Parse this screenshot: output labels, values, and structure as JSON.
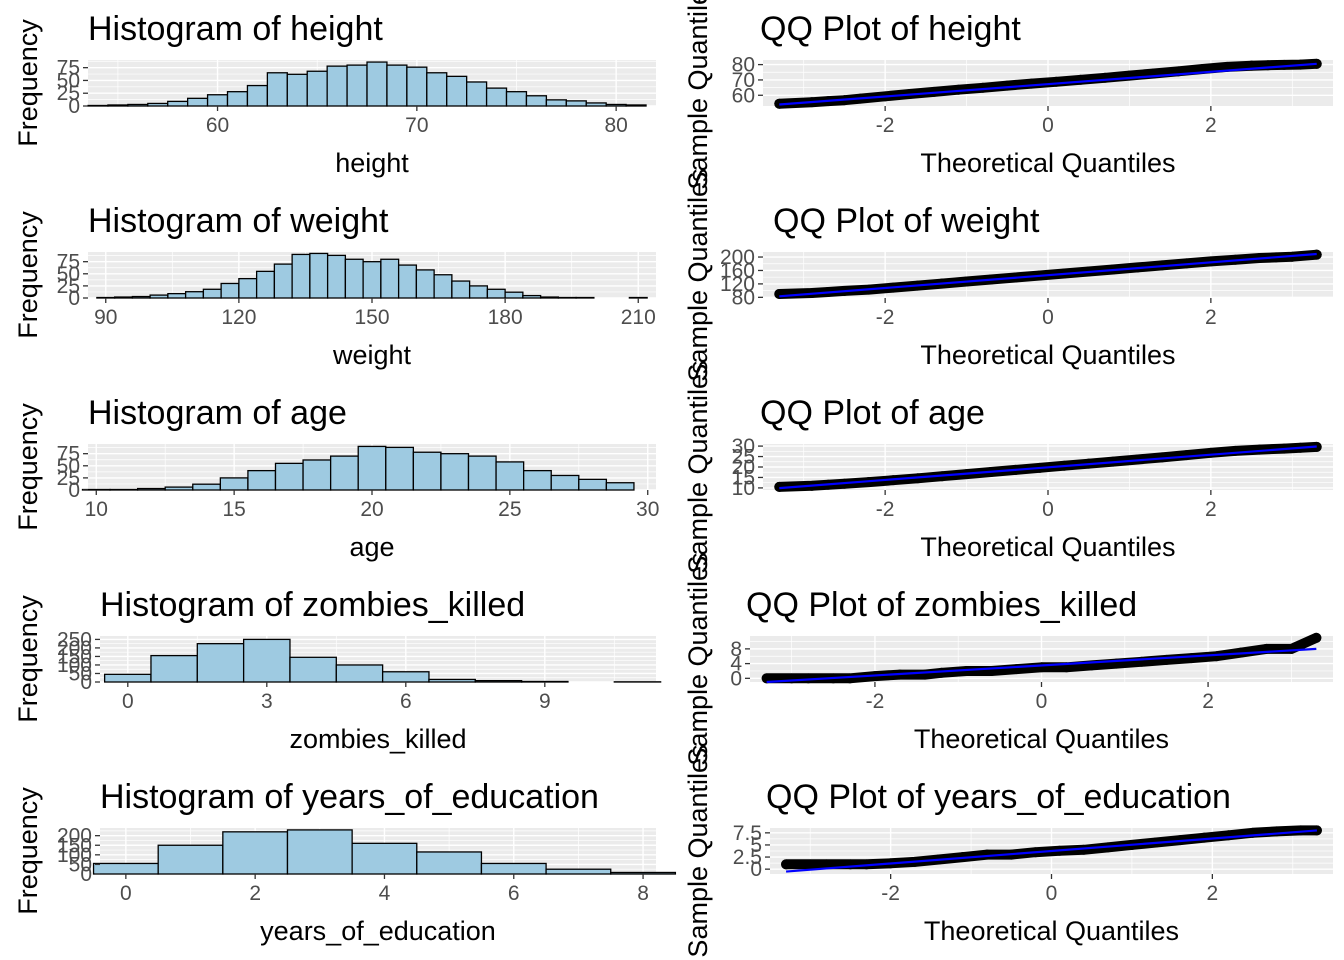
{
  "colors": {
    "panel": "#ebebeb",
    "grid": "#ffffff",
    "bar_fill": "#9ecae1",
    "bar_stroke": "#000000",
    "point": "#000000",
    "ref_line": "#0000ff"
  },
  "chart_data": [
    {
      "type": "bar",
      "kind": "histogram",
      "title": "Histogram of height",
      "xlabel": "height",
      "ylabel": "Frequency",
      "xlim": [
        53.5,
        82
      ],
      "ylim": [
        0,
        90
      ],
      "xticks": [
        60,
        70,
        80
      ],
      "yticks": [
        0,
        25,
        50,
        75
      ],
      "x": [
        54,
        55,
        56,
        57,
        58,
        59,
        60,
        61,
        62,
        63,
        64,
        65,
        66,
        67,
        68,
        69,
        70,
        71,
        72,
        73,
        74,
        75,
        76,
        77,
        78,
        79,
        80,
        81
      ],
      "values": [
        1,
        2,
        3,
        5,
        9,
        15,
        22,
        28,
        40,
        65,
        62,
        68,
        78,
        80,
        86,
        80,
        76,
        65,
        58,
        47,
        35,
        28,
        20,
        12,
        10,
        6,
        3,
        2
      ]
    },
    {
      "type": "scatter",
      "kind": "qq",
      "title": "QQ Plot of height",
      "xlabel": "Theoretical Quantiles",
      "ylabel": "Sample Quantiles",
      "xlim": [
        -3.5,
        3.5
      ],
      "ylim": [
        53,
        83
      ],
      "xticks": [
        -2,
        0,
        2
      ],
      "yticks": [
        60,
        70,
        80
      ],
      "points": [
        [
          -3.3,
          54.5
        ],
        [
          -2.9,
          55.5
        ],
        [
          -2.7,
          56.2
        ],
        [
          -2.5,
          56.8
        ],
        [
          -2.3,
          57.8
        ],
        [
          -2.0,
          59.3
        ],
        [
          -1.7,
          60.8
        ],
        [
          -1.4,
          62.2
        ],
        [
          -1.1,
          63.6
        ],
        [
          -0.8,
          64.9
        ],
        [
          -0.5,
          66.3
        ],
        [
          -0.2,
          67.6
        ],
        [
          0.1,
          68.8
        ],
        [
          0.4,
          70.1
        ],
        [
          0.7,
          71.4
        ],
        [
          1.0,
          72.8
        ],
        [
          1.3,
          74.2
        ],
        [
          1.6,
          75.6
        ],
        [
          1.9,
          77.1
        ],
        [
          2.2,
          78.5
        ],
        [
          2.5,
          79.3
        ],
        [
          2.7,
          79.6
        ],
        [
          2.9,
          79.8
        ],
        [
          3.1,
          80.0
        ],
        [
          3.3,
          80.5
        ]
      ],
      "line": [
        [
          -3.3,
          54.0
        ],
        [
          3.3,
          80.5
        ]
      ]
    },
    {
      "type": "bar",
      "kind": "histogram",
      "title": "Histogram of weight",
      "xlabel": "weight",
      "ylabel": "Frequency",
      "xlim": [
        86,
        214
      ],
      "ylim": [
        0,
        95
      ],
      "xticks": [
        90,
        120,
        150,
        180,
        210
      ],
      "yticks": [
        0,
        25,
        50,
        75
      ],
      "x": [
        90,
        94,
        98,
        102,
        106,
        110,
        114,
        118,
        122,
        126,
        130,
        134,
        138,
        142,
        146,
        150,
        154,
        158,
        162,
        166,
        170,
        174,
        178,
        182,
        186,
        190,
        194,
        198,
        202,
        206,
        210
      ],
      "values": [
        1,
        2,
        3,
        6,
        9,
        13,
        18,
        30,
        40,
        55,
        70,
        90,
        92,
        88,
        80,
        75,
        80,
        68,
        58,
        48,
        35,
        25,
        18,
        12,
        5,
        2,
        1,
        1,
        0,
        0,
        1
      ]
    },
    {
      "type": "scatter",
      "kind": "qq",
      "title": "QQ Plot of weight",
      "xlabel": "Theoretical Quantiles",
      "ylabel": "Sample Quantiles",
      "xlim": [
        -3.5,
        3.5
      ],
      "ylim": [
        78,
        215
      ],
      "xticks": [
        -2,
        0,
        2
      ],
      "yticks": [
        80,
        120,
        160,
        200
      ],
      "points": [
        [
          -3.3,
          90
        ],
        [
          -2.9,
          93
        ],
        [
          -2.7,
          96
        ],
        [
          -2.5,
          99
        ],
        [
          -2.2,
          103
        ],
        [
          -1.9,
          109
        ],
        [
          -1.6,
          115
        ],
        [
          -1.3,
          121
        ],
        [
          -1.0,
          127
        ],
        [
          -0.7,
          133
        ],
        [
          -0.4,
          139
        ],
        [
          -0.1,
          145
        ],
        [
          0.2,
          151
        ],
        [
          0.5,
          157
        ],
        [
          0.8,
          163
        ],
        [
          1.1,
          169
        ],
        [
          1.4,
          175
        ],
        [
          1.7,
          181
        ],
        [
          2.0,
          187
        ],
        [
          2.3,
          192
        ],
        [
          2.6,
          197
        ],
        [
          2.8,
          199
        ],
        [
          3.0,
          201
        ],
        [
          3.3,
          207
        ]
      ],
      "line": [
        [
          -3.3,
          83
        ],
        [
          3.3,
          209
        ]
      ]
    },
    {
      "type": "bar",
      "kind": "histogram",
      "title": "Histogram of age",
      "xlabel": "age",
      "ylabel": "Frequency",
      "xlim": [
        9.7,
        30.3
      ],
      "ylim": [
        0,
        95
      ],
      "xticks": [
        10,
        15,
        20,
        25,
        30
      ],
      "yticks": [
        0,
        25,
        50,
        75
      ],
      "x": [
        10,
        11,
        12,
        13,
        14,
        15,
        16,
        17,
        18,
        19,
        20,
        21,
        22,
        23,
        24,
        25,
        26,
        27,
        28,
        29
      ],
      "values": [
        1,
        1,
        3,
        6,
        12,
        25,
        40,
        55,
        62,
        70,
        90,
        88,
        78,
        75,
        70,
        58,
        40,
        30,
        22,
        15
      ]
    },
    {
      "type": "scatter",
      "kind": "qq",
      "title": "QQ Plot of age",
      "xlabel": "Theoretical Quantiles",
      "ylabel": "Sample Quantiles",
      "xlim": [
        -3.5,
        3.5
      ],
      "ylim": [
        9,
        31
      ],
      "xticks": [
        -2,
        0,
        2
      ],
      "yticks": [
        10,
        15,
        20,
        25,
        30
      ],
      "points": [
        [
          -3.3,
          10.5
        ],
        [
          -2.9,
          11.0
        ],
        [
          -2.7,
          11.5
        ],
        [
          -2.5,
          12.0
        ],
        [
          -2.2,
          12.8
        ],
        [
          -1.9,
          13.7
        ],
        [
          -1.6,
          14.6
        ],
        [
          -1.3,
          15.6
        ],
        [
          -1.0,
          16.6
        ],
        [
          -0.7,
          17.6
        ],
        [
          -0.4,
          18.6
        ],
        [
          -0.1,
          19.6
        ],
        [
          0.2,
          20.6
        ],
        [
          0.5,
          21.6
        ],
        [
          0.8,
          22.6
        ],
        [
          1.1,
          23.6
        ],
        [
          1.4,
          24.6
        ],
        [
          1.7,
          25.7
        ],
        [
          2.0,
          26.8
        ],
        [
          2.3,
          27.7
        ],
        [
          2.6,
          28.3
        ],
        [
          2.9,
          28.8
        ],
        [
          3.1,
          29.2
        ],
        [
          3.3,
          29.6
        ]
      ],
      "line": [
        [
          -3.3,
          9.9
        ],
        [
          3.3,
          29.8
        ]
      ]
    },
    {
      "type": "bar",
      "kind": "histogram",
      "title": "Histogram of zombies_killed",
      "xlabel": "zombies_killed",
      "ylabel": "Frequency",
      "xlim": [
        -0.6,
        11.4
      ],
      "ylim": [
        0,
        270
      ],
      "xticks": [
        0,
        3,
        6,
        9
      ],
      "yticks": [
        0,
        50,
        100,
        150,
        200,
        250
      ],
      "x": [
        0,
        1,
        2,
        3,
        4,
        5,
        6,
        7,
        8,
        9,
        10,
        11
      ],
      "values": [
        45,
        155,
        225,
        250,
        145,
        100,
        60,
        15,
        8,
        3,
        0,
        1
      ]
    },
    {
      "type": "scatter",
      "kind": "qq",
      "title": "QQ Plot of zombies_killed",
      "xlabel": "Theoretical Quantiles",
      "ylabel": "Sample Quantiles",
      "xlim": [
        -3.5,
        3.5
      ],
      "ylim": [
        -1,
        11.5
      ],
      "xticks": [
        -2,
        0,
        2
      ],
      "yticks": [
        0,
        4,
        8
      ],
      "points": [
        [
          -3.3,
          0
        ],
        [
          -3.0,
          0
        ],
        [
          -2.8,
          0
        ],
        [
          -2.5,
          0
        ],
        [
          -2.3,
          0
        ],
        [
          -2.0,
          0.6
        ],
        [
          -1.7,
          1
        ],
        [
          -1.4,
          1
        ],
        [
          -1.2,
          1.5
        ],
        [
          -0.9,
          2
        ],
        [
          -0.6,
          2
        ],
        [
          -0.3,
          2.5
        ],
        [
          0.0,
          3
        ],
        [
          0.3,
          3
        ],
        [
          0.6,
          3.5
        ],
        [
          0.9,
          4
        ],
        [
          1.2,
          4.5
        ],
        [
          1.5,
          5
        ],
        [
          1.8,
          5.5
        ],
        [
          2.1,
          6
        ],
        [
          2.4,
          7
        ],
        [
          2.7,
          8
        ],
        [
          3.0,
          8
        ],
        [
          3.3,
          11
        ]
      ],
      "line": [
        [
          -3.3,
          -1.0
        ],
        [
          3.3,
          8.0
        ]
      ]
    },
    {
      "type": "bar",
      "kind": "histogram",
      "title": "Histogram of years_of_education",
      "xlabel": "years_of_education",
      "ylabel": "Frequency",
      "xlim": [
        -0.4,
        8.2
      ],
      "ylim": [
        0,
        240
      ],
      "xticks": [
        0,
        2,
        4,
        6,
        8
      ],
      "yticks": [
        0,
        50,
        100,
        150,
        200
      ],
      "x": [
        0,
        1,
        2,
        3,
        4,
        5,
        6,
        7,
        8
      ],
      "values": [
        55,
        150,
        220,
        230,
        160,
        115,
        55,
        25,
        8
      ]
    },
    {
      "type": "scatter",
      "kind": "qq",
      "title": "QQ Plot of years_of_education",
      "xlabel": "Theoretical Quantiles",
      "ylabel": "Sample Quantiles",
      "xlim": [
        -3.5,
        3.5
      ],
      "ylim": [
        -1,
        8.5
      ],
      "xticks": [
        -2,
        0,
        2
      ],
      "yticks": [
        0.0,
        2.5,
        5.0,
        7.5
      ],
      "points": [
        [
          -3.3,
          1
        ],
        [
          -3.0,
          1
        ],
        [
          -2.8,
          1
        ],
        [
          -2.5,
          1
        ],
        [
          -2.3,
          1
        ],
        [
          -2.0,
          1.2
        ],
        [
          -1.7,
          1.5
        ],
        [
          -1.4,
          2
        ],
        [
          -1.1,
          2.5
        ],
        [
          -0.8,
          3
        ],
        [
          -0.5,
          3
        ],
        [
          -0.2,
          3.5
        ],
        [
          0.1,
          3.8
        ],
        [
          0.4,
          4
        ],
        [
          0.7,
          4.5
        ],
        [
          1.0,
          5
        ],
        [
          1.3,
          5.5
        ],
        [
          1.6,
          6
        ],
        [
          1.9,
          6.5
        ],
        [
          2.2,
          7
        ],
        [
          2.5,
          7.5
        ],
        [
          2.8,
          7.8
        ],
        [
          3.1,
          8
        ],
        [
          3.3,
          8
        ]
      ],
      "line": [
        [
          -3.3,
          -0.5
        ],
        [
          3.3,
          8.0
        ]
      ]
    }
  ]
}
